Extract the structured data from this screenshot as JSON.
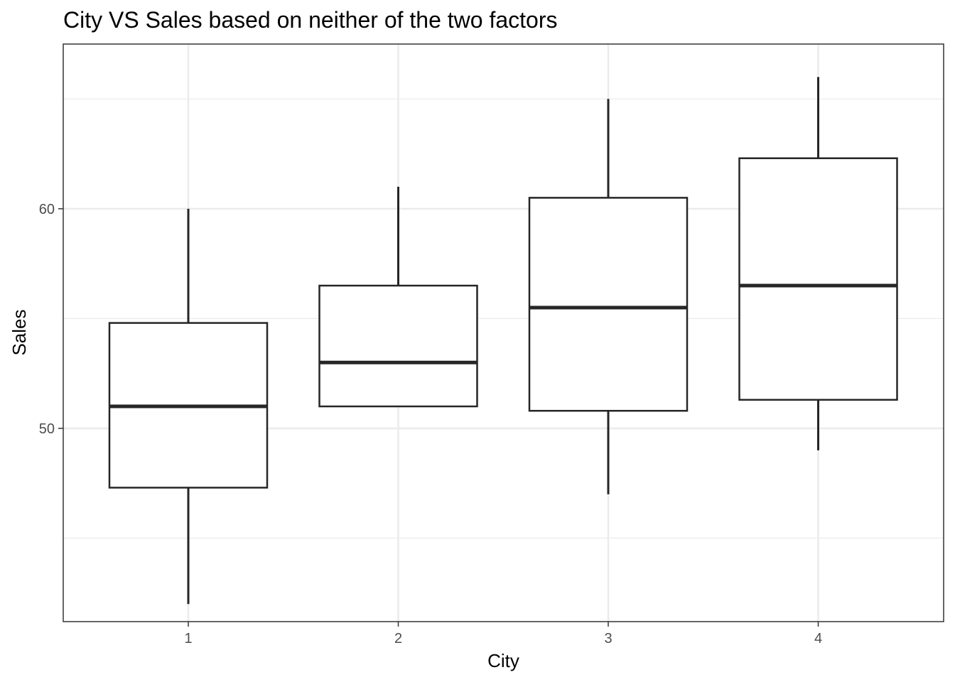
{
  "chart_data": {
    "type": "box",
    "title": "City VS Sales based on neither of the two factors",
    "xlabel": "City",
    "ylabel": "Sales",
    "categories": [
      "1",
      "2",
      "3",
      "4"
    ],
    "ylim": [
      41.2,
      67.5
    ],
    "y_ticks": [
      50,
      60
    ],
    "y_minor_ticks": [
      45,
      55,
      65
    ],
    "grid": true,
    "boxes": [
      {
        "category": "1",
        "whisker_low": 42.0,
        "q1": 47.3,
        "median": 51.0,
        "q3": 54.8,
        "whisker_high": 60.0
      },
      {
        "category": "2",
        "whisker_low": 51.0,
        "q1": 51.0,
        "median": 53.0,
        "q3": 56.5,
        "whisker_high": 61.0
      },
      {
        "category": "3",
        "whisker_low": 47.0,
        "q1": 50.8,
        "median": 55.5,
        "q3": 60.5,
        "whisker_high": 65.0
      },
      {
        "category": "4",
        "whisker_low": 49.0,
        "q1": 51.3,
        "median": 56.5,
        "q3": 62.3,
        "whisker_high": 66.0
      }
    ],
    "colors": {
      "box_stroke": "#262626",
      "grid": "#ebebeb",
      "panel_border": "#333333",
      "tick_text": "#4d4d4d"
    }
  }
}
